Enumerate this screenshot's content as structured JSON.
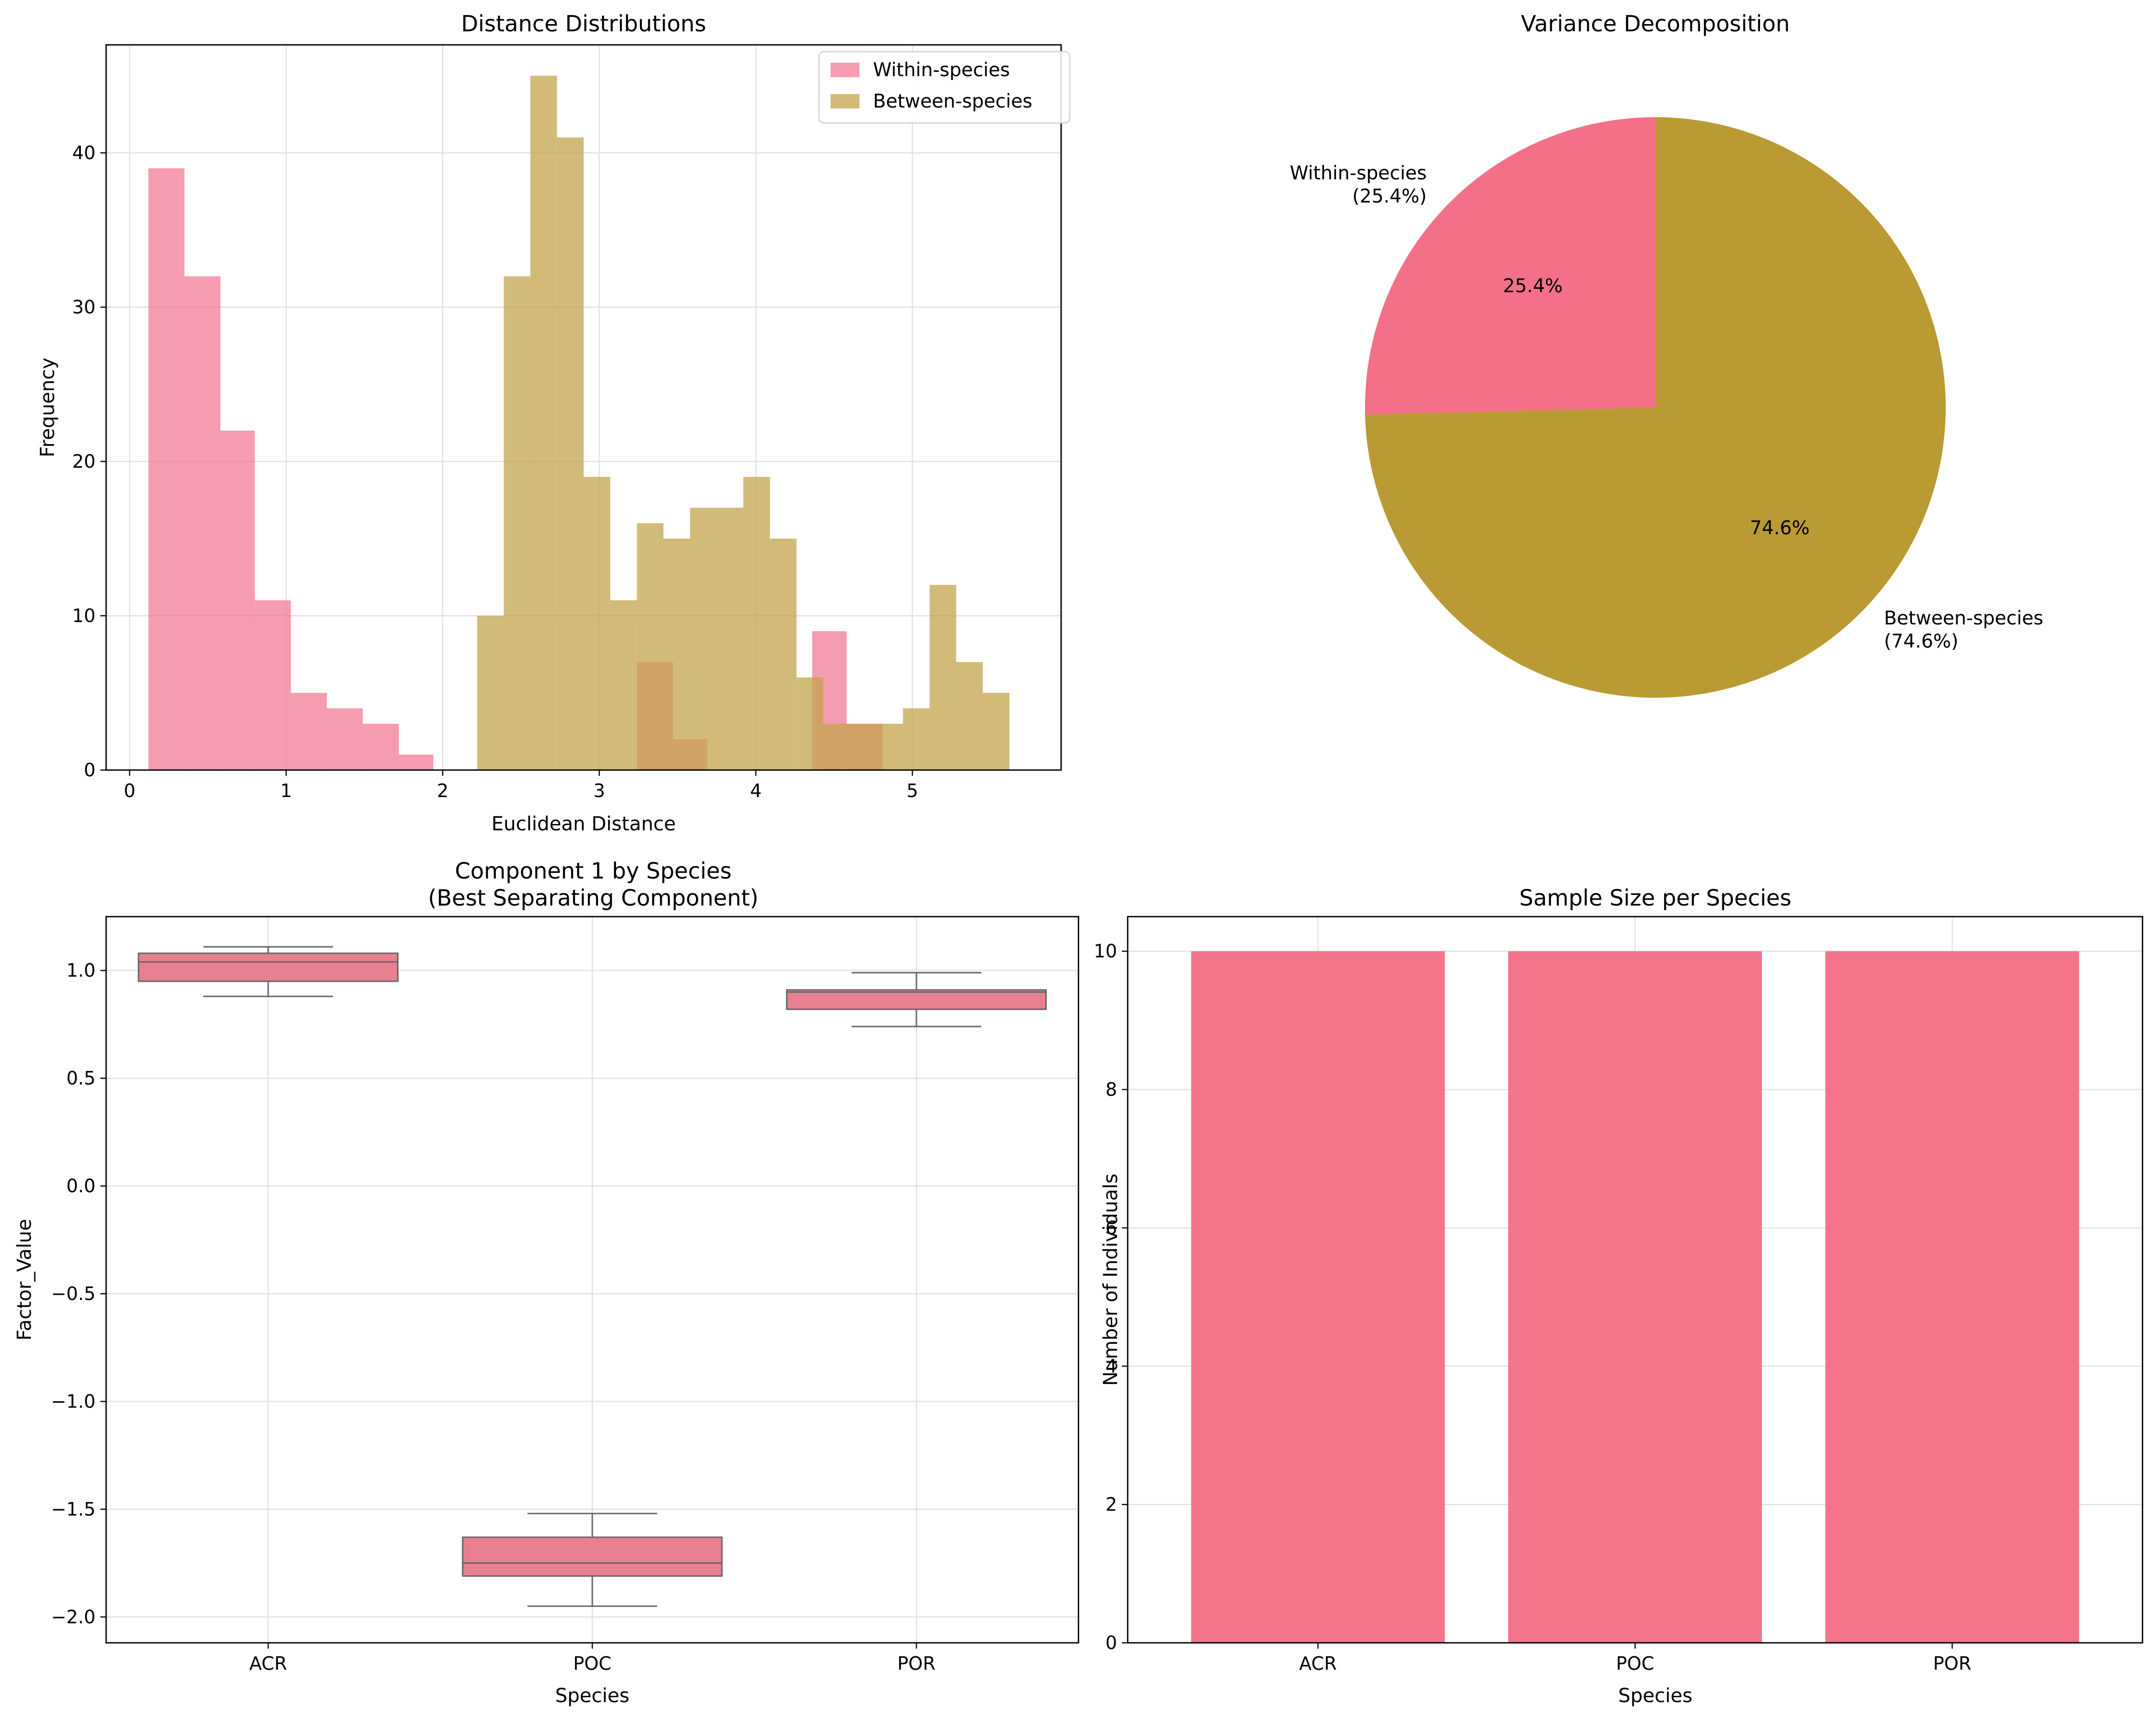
{
  "chart_data": [
    {
      "type": "histogram",
      "title": "Distance Distributions",
      "xlabel": "Euclidean Distance",
      "ylabel": "Frequency",
      "xlim": [
        -0.15,
        5.95
      ],
      "ylim": [
        0,
        47
      ],
      "xticks": [
        "0",
        "1",
        "2",
        "3",
        "4",
        "5"
      ],
      "yticks": [
        "0",
        "10",
        "20",
        "30",
        "40"
      ],
      "grid": true,
      "legend_position": "top-right",
      "series": [
        {
          "name": "Within-species",
          "color": "#f37b95",
          "bins": [
            {
              "x0": 0.12,
              "x1": 0.35,
              "count": 39
            },
            {
              "x0": 0.35,
              "x1": 0.58,
              "count": 32
            },
            {
              "x0": 0.58,
              "x1": 0.8,
              "count": 22
            },
            {
              "x0": 0.8,
              "x1": 1.03,
              "count": 11
            },
            {
              "x0": 1.03,
              "x1": 1.26,
              "count": 5
            },
            {
              "x0": 1.26,
              "x1": 1.49,
              "count": 4
            },
            {
              "x0": 1.49,
              "x1": 1.72,
              "count": 3
            },
            {
              "x0": 1.72,
              "x1": 1.94,
              "count": 1
            },
            {
              "x0": 3.24,
              "x1": 3.47,
              "count": 7
            },
            {
              "x0": 3.47,
              "x1": 3.69,
              "count": 2
            },
            {
              "x0": 4.36,
              "x1": 4.58,
              "count": 9
            },
            {
              "x0": 4.58,
              "x1": 4.81,
              "count": 3
            }
          ]
        },
        {
          "name": "Between-species",
          "color": "#c3a44c",
          "bins": [
            {
              "x0": 2.22,
              "x1": 2.39,
              "count": 10
            },
            {
              "x0": 2.39,
              "x1": 2.56,
              "count": 32
            },
            {
              "x0": 2.56,
              "x1": 2.73,
              "count": 45
            },
            {
              "x0": 2.73,
              "x1": 2.9,
              "count": 41
            },
            {
              "x0": 2.9,
              "x1": 3.07,
              "count": 19
            },
            {
              "x0": 3.07,
              "x1": 3.24,
              "count": 11
            },
            {
              "x0": 3.24,
              "x1": 3.41,
              "count": 16
            },
            {
              "x0": 3.41,
              "x1": 3.58,
              "count": 15
            },
            {
              "x0": 3.58,
              "x1": 3.75,
              "count": 17
            },
            {
              "x0": 3.75,
              "x1": 3.92,
              "count": 17
            },
            {
              "x0": 3.92,
              "x1": 4.09,
              "count": 19
            },
            {
              "x0": 4.09,
              "x1": 4.26,
              "count": 15
            },
            {
              "x0": 4.26,
              "x1": 4.43,
              "count": 6
            },
            {
              "x0": 4.43,
              "x1": 4.6,
              "count": 3
            },
            {
              "x0": 4.6,
              "x1": 4.77,
              "count": 3
            },
            {
              "x0": 4.77,
              "x1": 4.94,
              "count": 3
            },
            {
              "x0": 4.94,
              "x1": 5.11,
              "count": 4
            },
            {
              "x0": 5.11,
              "x1": 5.28,
              "count": 12
            },
            {
              "x0": 5.28,
              "x1": 5.45,
              "count": 7
            },
            {
              "x0": 5.45,
              "x1": 5.62,
              "count": 5
            }
          ]
        }
      ]
    },
    {
      "type": "pie",
      "title": "Variance Decomposition",
      "slices": [
        {
          "label": "Within-species",
          "sublabel": "(25.4%)",
          "pct_text": "25.4%",
          "value": 25.4,
          "color": "#f37088"
        },
        {
          "label": "Between-species",
          "sublabel": "(74.6%)",
          "pct_text": "74.6%",
          "value": 74.6,
          "color": "#b99a33"
        }
      ]
    },
    {
      "type": "box",
      "title": "Component 1 by Species",
      "subtitle": "(Best Separating Component)",
      "xlabel": "Species",
      "ylabel": "Factor_Value",
      "ylim": [
        -2.12,
        1.25
      ],
      "yticks": [
        "1.0",
        "0.5",
        "0.0",
        "−0.5",
        "−1.0",
        "−1.5",
        "−2.0"
      ],
      "ytick_values": [
        1.0,
        0.5,
        0.0,
        -0.5,
        -1.0,
        -1.5,
        -2.0
      ],
      "grid": true,
      "box_color": "#e9808f",
      "categories": [
        "ACR",
        "POC",
        "POR"
      ],
      "boxes": [
        {
          "category": "ACR",
          "min": 0.88,
          "q1": 0.95,
          "median": 1.04,
          "q3": 1.08,
          "max": 1.11
        },
        {
          "category": "POC",
          "min": -1.95,
          "q1": -1.81,
          "median": -1.75,
          "q3": -1.63,
          "max": -1.52
        },
        {
          "category": "POR",
          "min": 0.74,
          "q1": 0.82,
          "median": 0.9,
          "q3": 0.91,
          "max": 0.99
        }
      ]
    },
    {
      "type": "bar",
      "title": "Sample Size per Species",
      "xlabel": "Species",
      "ylabel": "Number of Individuals",
      "ylim": [
        0,
        10.5
      ],
      "yticks": [
        "0",
        "2",
        "4",
        "6",
        "8",
        "10"
      ],
      "grid": true,
      "bar_color": "#f47189",
      "categories": [
        "ACR",
        "POC",
        "POR"
      ],
      "values": [
        10,
        10,
        10
      ]
    }
  ]
}
